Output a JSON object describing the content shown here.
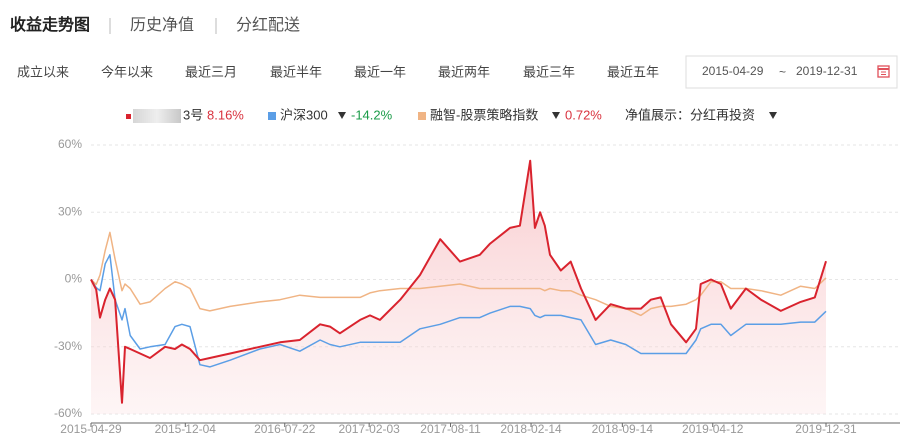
{
  "tabs": [
    "收益走势图",
    "历史净值",
    "分红配送"
  ],
  "range_buttons": [
    "成立以来",
    "今年以来",
    "最近三月",
    "最近半年",
    "最近一年",
    "最近两年",
    "最近三年",
    "最近五年"
  ],
  "date_range": {
    "start": "2015-04-29",
    "separator": "~",
    "end": "2019-12-31"
  },
  "display_option": "净值展示：分红再投资",
  "chart_data": {
    "type": "line",
    "x": [
      "2015-04-29",
      "2015-05-11",
      "2015-05-20",
      "2015-06-01",
      "2015-06-12",
      "2015-06-24",
      "2015-07-10",
      "2015-07-17",
      "2015-07-29",
      "2015-08-21",
      "2015-09-13",
      "2015-10-18",
      "2015-11-10",
      "2015-11-26",
      "2015-12-15",
      "2016-01-07",
      "2016-01-30",
      "2016-03-17",
      "2016-05-25",
      "2016-07-11",
      "2016-08-26",
      "2016-10-12",
      "2016-11-04",
      "2016-11-27",
      "2017-01-13",
      "2017-02-05",
      "2017-02-28",
      "2017-04-16",
      "2017-06-01",
      "2017-07-18",
      "2017-09-02",
      "2017-10-18",
      "2017-11-11",
      "2017-12-27",
      "2018-01-19",
      "2018-02-12",
      "2018-02-23",
      "2018-03-07",
      "2018-03-18",
      "2018-03-30",
      "2018-04-24",
      "2018-05-17",
      "2018-06-10",
      "2018-07-14",
      "2018-08-18",
      "2018-09-22",
      "2018-10-27",
      "2018-11-19",
      "2018-12-12",
      "2019-01-05",
      "2019-02-09",
      "2019-03-04",
      "2019-03-15",
      "2019-04-08",
      "2019-05-01",
      "2019-05-24",
      "2019-06-28",
      "2019-08-02",
      "2019-09-17",
      "2019-11-02",
      "2019-12-05",
      "2019-12-31"
    ],
    "series": [
      {
        "name": "3号",
        "color": "#d9232e",
        "change": "8.16%",
        "change_color": "#d9333f",
        "values": [
          0,
          -4.5,
          -17,
          -9,
          -4,
          -9,
          -55,
          -30,
          -31,
          -33,
          -35,
          -30,
          -31,
          -29,
          -31,
          -36,
          -35,
          -33,
          -30,
          -28,
          -27,
          -20,
          -21,
          -24,
          -18,
          -16,
          -18,
          -9,
          2,
          18,
          8,
          11,
          16,
          23,
          24,
          53,
          23,
          30,
          24,
          11,
          4,
          8,
          -4,
          -18,
          -11,
          -13,
          -13,
          -9,
          -8,
          -20,
          -28,
          -22,
          -2,
          0,
          -2,
          -13,
          -4,
          -9,
          -14,
          -10,
          -8,
          8.16
        ]
      },
      {
        "name": "沪深300",
        "color": "#5b9ee6",
        "change": "-14.2%",
        "change_color": "#1a9b48",
        "values": [
          0,
          -3.6,
          -5,
          7,
          11,
          -9,
          -18,
          -13,
          -25,
          -31,
          -30,
          -29,
          -21,
          -20,
          -21,
          -38,
          -39,
          -36,
          -31,
          -29,
          -32,
          -27,
          -29,
          -30,
          -28,
          -28,
          -28,
          -28,
          -22,
          -20,
          -17,
          -17,
          -15,
          -12,
          -12,
          -13,
          -16,
          -17,
          -16,
          -16,
          -16,
          -17,
          -18,
          -29,
          -27,
          -29,
          -33,
          -33,
          -33,
          -33,
          -33,
          -27,
          -22,
          -20,
          -20,
          -25,
          -20,
          -20,
          -20,
          -19,
          -19,
          -14.2
        ]
      },
      {
        "name": "融智-股票策略指数",
        "color": "#f0b484",
        "change": "0.72%",
        "change_color": "#d9333f",
        "values": [
          0,
          -2.2,
          2,
          13,
          21,
          9,
          -5,
          -2,
          -4,
          -11,
          -10,
          -4,
          -1,
          -2,
          -4,
          -13,
          -14,
          -12,
          -10,
          -9,
          -7,
          -8,
          -8,
          -8,
          -8,
          -6,
          -5,
          -4,
          -4,
          -3,
          -2,
          -4,
          -4,
          -4,
          -4,
          -4,
          -4,
          -4,
          -5,
          -4,
          -5,
          -5,
          -7,
          -9,
          -12,
          -13,
          -16,
          -13,
          -12,
          -12,
          -11,
          -9,
          -7,
          -1,
          -1,
          -4,
          -4,
          -5,
          -7,
          -3,
          -4,
          0.72
        ]
      }
    ],
    "area_series": 0,
    "xlim": [
      "2015-04-29",
      "2019-12-31"
    ],
    "xticks": [
      "2015-04-29",
      "2015-12-04",
      "2016-07-22",
      "2017-02-03",
      "2017-08-11",
      "2018-02-14",
      "2018-09-14",
      "2019-04-12",
      "2019-12-31"
    ],
    "ylim": [
      -60,
      60
    ],
    "yticks": [
      {
        "value": 60,
        "label": "60%"
      },
      {
        "value": 30,
        "label": "30%"
      },
      {
        "value": 0,
        "label": "0%"
      },
      {
        "value": -30,
        "label": "-30%"
      },
      {
        "value": -60,
        "label": "-60%"
      }
    ],
    "grid": true
  }
}
